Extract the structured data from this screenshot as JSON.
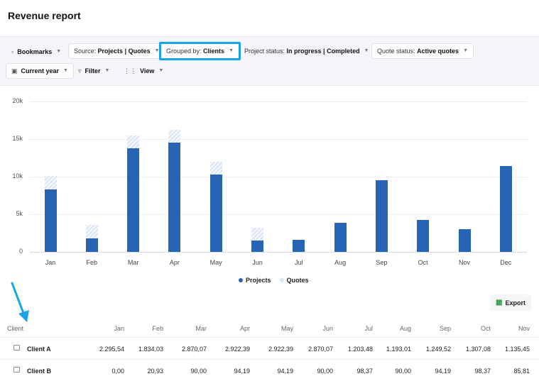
{
  "page": {
    "title": "Revenue report"
  },
  "toolbar": {
    "bookmarks": "Bookmarks",
    "source_label": "Source:",
    "source_value": "Projects | Quotes",
    "grouped_label": "Grouped by:",
    "grouped_value": "Clients",
    "project_status_label": "Project status:",
    "project_status_value": "In progress | Completed",
    "quote_status_label": "Quote status:",
    "quote_status_value": "Active quotes",
    "period": "Current year",
    "filter": "Filter",
    "view": "View"
  },
  "chart_data": {
    "type": "bar",
    "stacked": true,
    "categories": [
      "Jan",
      "Feb",
      "Mar",
      "Apr",
      "May",
      "Jun",
      "Jul",
      "Aug",
      "Sep",
      "Oct",
      "Nov",
      "Dec"
    ],
    "series": [
      {
        "name": "Projects",
        "values": [
          8300,
          1800,
          13800,
          14500,
          10300,
          1500,
          1600,
          3900,
          9500,
          4200,
          3000,
          11400
        ]
      },
      {
        "name": "Quotes",
        "values": [
          1800,
          1800,
          1700,
          1700,
          1700,
          1700,
          0,
          0,
          0,
          0,
          0,
          0
        ]
      }
    ],
    "ylim": [
      0,
      20000
    ],
    "yticks": [
      "0",
      "5k",
      "10k",
      "15k",
      "20k"
    ],
    "grid": true,
    "legend_position": "bottom-center",
    "colors": {
      "Projects": "#2864b4",
      "Quotes": "#c7daf0"
    }
  },
  "legend": {
    "projects": "Projects",
    "quotes": "Quotes"
  },
  "export_label": "Export",
  "table": {
    "client_header": "Client",
    "columns": [
      "Jan",
      "Feb",
      "Mar",
      "Apr",
      "May",
      "Jun",
      "Jul",
      "Aug",
      "Sep",
      "Oct",
      "Nov"
    ],
    "rows": [
      {
        "client": "Client A",
        "values": [
          "2.295,54",
          "1.834,03",
          "2.870,07",
          "2.922,39",
          "2.922,39",
          "2.870,07",
          "1.203,48",
          "1.193,01",
          "1.249,52",
          "1.307,08",
          "1.135,45"
        ]
      },
      {
        "client": "Client B",
        "values": [
          "0,00",
          "20,93",
          "90,00",
          "94,19",
          "94,19",
          "90,00",
          "98,37",
          "90,00",
          "94,19",
          "98,37",
          "85,81"
        ]
      }
    ]
  },
  "colors": {
    "accent_highlight": "#1aa3e8",
    "bar": "#2864b4"
  }
}
